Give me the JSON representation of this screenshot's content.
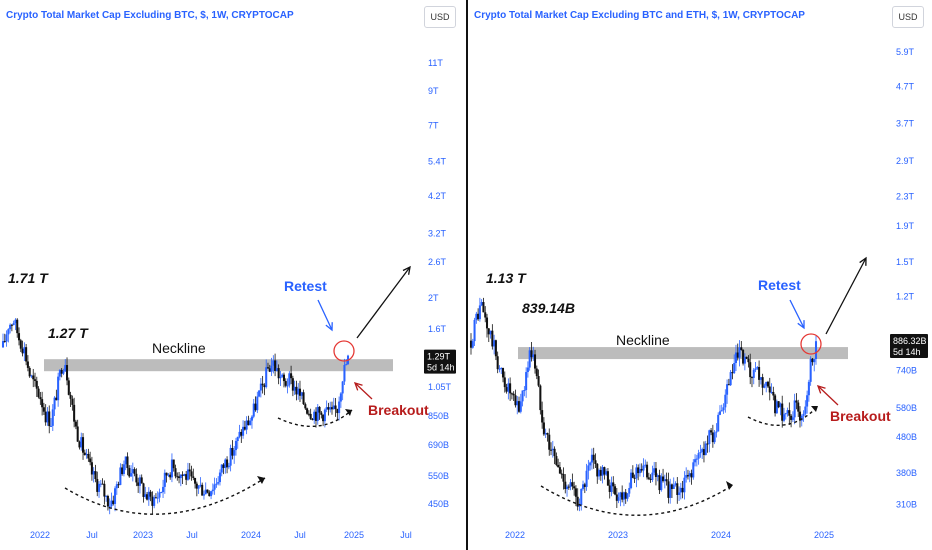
{
  "colors": {
    "up": "#2962ff",
    "down": "#111111",
    "accent": "#2962ff",
    "breakout": "#b71c1c",
    "neckline": "#b0b0b0"
  },
  "chart_data": [
    {
      "type": "candlestick",
      "title": "Crypto Total Market Cap Excluding BTC, $, 1W, CRYPTOCAP",
      "currency": "USD",
      "log_scale": true,
      "ylim": [
        400,
        14000
      ],
      "y_ticks": [
        {
          "label": "11T",
          "value": 11000
        },
        {
          "label": "9T",
          "value": 9000
        },
        {
          "label": "7T",
          "value": 7000
        },
        {
          "label": "5.4T",
          "value": 5400
        },
        {
          "label": "4.2T",
          "value": 4200
        },
        {
          "label": "3.2T",
          "value": 3200
        },
        {
          "label": "2.6T",
          "value": 2600
        },
        {
          "label": "2T",
          "value": 2000
        },
        {
          "label": "1.6T",
          "value": 1600
        },
        {
          "label": "1.05T",
          "value": 1050
        },
        {
          "label": "850B",
          "value": 850
        },
        {
          "label": "690B",
          "value": 690
        },
        {
          "label": "550B",
          "value": 550
        },
        {
          "label": "450B",
          "value": 450
        }
      ],
      "x_ticks": [
        "2022",
        "Jul",
        "2023",
        "Jul",
        "2024",
        "Jul",
        "2025",
        "Jul"
      ],
      "current_price": {
        "label": "1.29T",
        "countdown": "5d 14h",
        "value": 1290
      },
      "neckline": {
        "value": 1230,
        "label": "Neckline"
      },
      "annotations": {
        "ath_label": "1.71 T",
        "shoulder_label": "1.27 T",
        "retest": "Retest",
        "breakout": "Breakout"
      },
      "series": {
        "trend": [
          [
            0,
            1400
          ],
          [
            3,
            1650
          ],
          [
            6,
            1710
          ],
          [
            9,
            1500
          ],
          [
            12,
            1380
          ],
          [
            15,
            1150
          ],
          [
            18,
            1050
          ],
          [
            21,
            980
          ],
          [
            24,
            860
          ],
          [
            27,
            820
          ],
          [
            30,
            1000
          ],
          [
            33,
            1230
          ],
          [
            35,
            1270
          ],
          [
            37,
            1050
          ],
          [
            39,
            900
          ],
          [
            41,
            780
          ],
          [
            44,
            690
          ],
          [
            47,
            620
          ],
          [
            50,
            560
          ],
          [
            53,
            520
          ],
          [
            56,
            500
          ],
          [
            58,
            470
          ],
          [
            60,
            455
          ],
          [
            62,
            470
          ],
          [
            65,
            540
          ],
          [
            68,
            610
          ],
          [
            71,
            580
          ],
          [
            74,
            560
          ],
          [
            77,
            520
          ],
          [
            80,
            480
          ],
          [
            83,
            465
          ],
          [
            86,
            470
          ],
          [
            89,
            500
          ],
          [
            92,
            560
          ],
          [
            95,
            590
          ],
          [
            98,
            570
          ],
          [
            101,
            555
          ],
          [
            104,
            550
          ],
          [
            107,
            520
          ],
          [
            110,
            510
          ],
          [
            113,
            500
          ],
          [
            116,
            500
          ],
          [
            119,
            520
          ],
          [
            122,
            560
          ],
          [
            125,
            610
          ],
          [
            128,
            640
          ],
          [
            131,
            690
          ],
          [
            134,
            760
          ],
          [
            137,
            800
          ],
          [
            140,
            850
          ],
          [
            143,
            960
          ],
          [
            146,
            1050
          ],
          [
            149,
            1200
          ],
          [
            152,
            1250
          ],
          [
            155,
            1150
          ],
          [
            158,
            1080
          ],
          [
            161,
            1100
          ],
          [
            164,
            1050
          ],
          [
            167,
            980
          ],
          [
            170,
            920
          ],
          [
            173,
            880
          ],
          [
            176,
            870
          ],
          [
            179,
            860
          ],
          [
            182,
            890
          ],
          [
            185,
            860
          ],
          [
            188,
            900
          ],
          [
            191,
            1150
          ],
          [
            194,
            1290
          ]
        ]
      }
    },
    {
      "type": "candlestick",
      "title": "Crypto Total Market Cap Excluding BTC and ETH, $, 1W, CRYPTOCAP",
      "currency": "USD",
      "log_scale": true,
      "ylim": [
        280,
        6800
      ],
      "y_ticks": [
        {
          "label": "5.9T",
          "value": 5900
        },
        {
          "label": "4.7T",
          "value": 4700
        },
        {
          "label": "3.7T",
          "value": 3700
        },
        {
          "label": "2.9T",
          "value": 2900
        },
        {
          "label": "2.3T",
          "value": 2300
        },
        {
          "label": "1.9T",
          "value": 1900
        },
        {
          "label": "1.5T",
          "value": 1500
        },
        {
          "label": "1.2T",
          "value": 1200
        },
        {
          "label": "740B",
          "value": 740
        },
        {
          "label": "580B",
          "value": 580
        },
        {
          "label": "480B",
          "value": 480
        },
        {
          "label": "380B",
          "value": 380
        },
        {
          "label": "310B",
          "value": 310
        }
      ],
      "x_ticks": [
        "2022",
        "2023",
        "2024",
        "2025"
      ],
      "current_price": {
        "label": "886.32B",
        "countdown": "5d 14h",
        "value": 886.32
      },
      "neckline": {
        "value": 830,
        "label": "Neckline"
      },
      "annotations": {
        "ath_label": "1.13 T",
        "shoulder_label": "839.14B",
        "retest": "Retest",
        "breakout": "Breakout"
      },
      "series": {
        "trend": [
          [
            0,
            900
          ],
          [
            3,
            1050
          ],
          [
            6,
            1130
          ],
          [
            9,
            980
          ],
          [
            12,
            900
          ],
          [
            15,
            780
          ],
          [
            18,
            700
          ],
          [
            21,
            660
          ],
          [
            24,
            600
          ],
          [
            27,
            580
          ],
          [
            30,
            680
          ],
          [
            33,
            820
          ],
          [
            35,
            840
          ],
          [
            37,
            700
          ],
          [
            39,
            600
          ],
          [
            41,
            520
          ],
          [
            44,
            460
          ],
          [
            47,
            420
          ],
          [
            50,
            380
          ],
          [
            53,
            360
          ],
          [
            56,
            350
          ],
          [
            58,
            330
          ],
          [
            60,
            320
          ],
          [
            62,
            330
          ],
          [
            65,
            370
          ],
          [
            68,
            410
          ],
          [
            71,
            390
          ],
          [
            74,
            380
          ],
          [
            77,
            360
          ],
          [
            80,
            340
          ],
          [
            83,
            330
          ],
          [
            86,
            335
          ],
          [
            89,
            350
          ],
          [
            92,
            380
          ],
          [
            95,
            400
          ],
          [
            98,
            385
          ],
          [
            101,
            380
          ],
          [
            104,
            375
          ],
          [
            107,
            355
          ],
          [
            110,
            345
          ],
          [
            113,
            340
          ],
          [
            116,
            340
          ],
          [
            119,
            350
          ],
          [
            122,
            370
          ],
          [
            125,
            400
          ],
          [
            128,
            420
          ],
          [
            131,
            450
          ],
          [
            134,
            480
          ],
          [
            137,
            500
          ],
          [
            140,
            540
          ],
          [
            143,
            620
          ],
          [
            146,
            700
          ],
          [
            149,
            800
          ],
          [
            152,
            820
          ],
          [
            155,
            760
          ],
          [
            158,
            700
          ],
          [
            161,
            720
          ],
          [
            164,
            680
          ],
          [
            167,
            640
          ],
          [
            170,
            600
          ],
          [
            173,
            570
          ],
          [
            176,
            560
          ],
          [
            179,
            555
          ],
          [
            182,
            580
          ],
          [
            185,
            560
          ],
          [
            188,
            600
          ],
          [
            191,
            780
          ],
          [
            194,
            886
          ]
        ]
      }
    }
  ]
}
